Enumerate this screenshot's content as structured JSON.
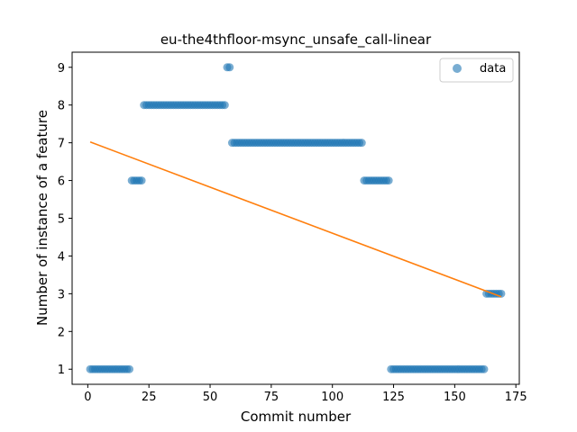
{
  "chart_data": {
    "type": "scatter",
    "title": "eu-the4thfloor-msync_unsafe_call-linear",
    "xlabel": "Commit number",
    "ylabel": "Number of instance of a feature",
    "xlim": [
      -6.4,
      176.4
    ],
    "ylim": [
      0.6,
      9.4
    ],
    "xticks": [
      0,
      25,
      50,
      75,
      100,
      125,
      150,
      175
    ],
    "yticks": [
      1,
      2,
      3,
      4,
      5,
      6,
      7,
      8,
      9
    ],
    "grid": false,
    "legend_position": "top-right",
    "colors": {
      "data": "#1f77b4",
      "trend": "#ff7f0e"
    },
    "series": [
      {
        "name": "data",
        "kind": "points",
        "segments": [
          {
            "x_from": 1,
            "x_to": 17,
            "y": 1
          },
          {
            "x_from": 18,
            "x_to": 22,
            "y": 6
          },
          {
            "x_from": 23,
            "x_to": 56,
            "y": 8
          },
          {
            "x_from": 57,
            "x_to": 58,
            "y": 9
          },
          {
            "x_from": 59,
            "x_to": 112,
            "y": 7
          },
          {
            "x_from": 113,
            "x_to": 123,
            "y": 6
          },
          {
            "x_from": 124,
            "x_to": 162,
            "y": 1
          },
          {
            "x_from": 163,
            "x_to": 169,
            "y": 3
          }
        ]
      },
      {
        "kind": "line",
        "x": [
          1,
          169
        ],
        "y": [
          7.02,
          2.92
        ]
      }
    ]
  }
}
